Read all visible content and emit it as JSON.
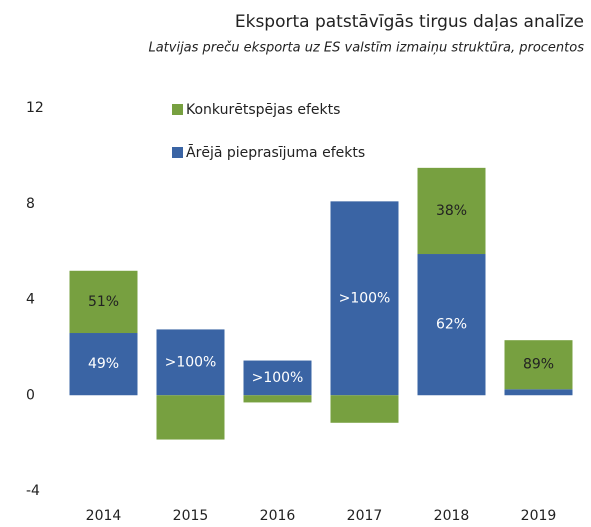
{
  "chart_data": {
    "type": "stacked_bar",
    "title": "Eksporta patstāvīgās tirgus daļas analīze",
    "subtitle": "Latvijas preču eksporta uz ES valstīm izmaiņu struktūra, procentos",
    "categories": [
      "2014",
      "2015",
      "2016",
      "2017",
      "2018",
      "2019"
    ],
    "series": [
      {
        "name": "Ārējā pieprasījuma efekts",
        "color": "#3a64a4",
        "values": [
          2.6,
          2.75,
          1.45,
          8.1,
          5.9,
          0.25
        ],
        "share_labels": [
          "49%",
          ">100%",
          ">100%",
          ">100%",
          "62%",
          null
        ]
      },
      {
        "name": "Konkurētspējas efekts",
        "color": "#77a040",
        "values": [
          2.6,
          -1.85,
          -0.3,
          -1.15,
          3.6,
          2.05
        ],
        "share_labels": [
          "51%",
          null,
          null,
          null,
          "38%",
          "89%"
        ]
      }
    ],
    "legend_order": [
      1,
      0
    ],
    "ylim": [
      -4,
      12
    ],
    "yticks": [
      -4,
      0,
      4,
      8,
      12
    ],
    "grid": false
  }
}
